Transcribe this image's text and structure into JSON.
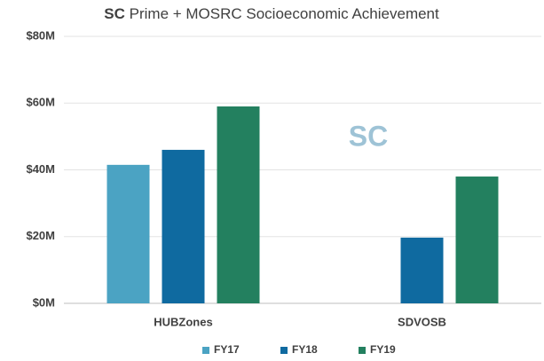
{
  "chart_data": {
    "type": "bar",
    "title_emphasis": "SC",
    "title": "Prime + MOSRC Socioeconomic Achievement",
    "annotation": "SC",
    "categories": [
      "HUBZones",
      "SDVOSB"
    ],
    "series": [
      {
        "name": "FY17",
        "color": "#4ba3c3",
        "values": [
          41.5,
          null
        ]
      },
      {
        "name": "FY18",
        "color": "#0f6aa0",
        "values": [
          46,
          19.7
        ]
      },
      {
        "name": "FY19",
        "color": "#23805f",
        "values": [
          59,
          38
        ]
      }
    ],
    "ylim": [
      0,
      80
    ],
    "yticks": [
      {
        "value": 0,
        "label": "$0M"
      },
      {
        "value": 20,
        "label": "$20M"
      },
      {
        "value": 40,
        "label": "$40M"
      },
      {
        "value": 60,
        "label": "$60M"
      },
      {
        "value": 80,
        "label": "$80M"
      }
    ],
    "grid": true,
    "legend": "bottom"
  }
}
